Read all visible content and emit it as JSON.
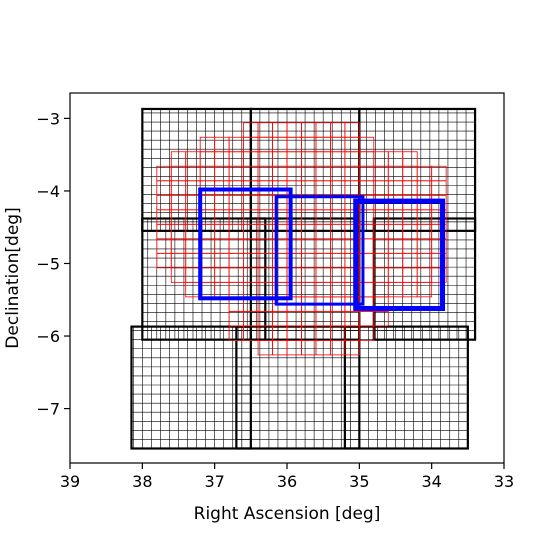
{
  "chart_data": {
    "type": "scatter",
    "title": "",
    "xlabel": "Right Ascension [deg]",
    "ylabel": "Declination[deg]",
    "xlim": [
      39,
      33
    ],
    "ylim": [
      -7.75,
      -2.65
    ],
    "x_inverted": true,
    "xticks": [
      39,
      38,
      37,
      36,
      35,
      34,
      33
    ],
    "yticks": [
      -3,
      -4,
      -5,
      -6,
      -7
    ],
    "xtick_labels": [
      "39",
      "38",
      "37",
      "36",
      "35",
      "34",
      "33"
    ],
    "ytick_labels": [
      "−3",
      "−4",
      "−5",
      "−6",
      "−7"
    ],
    "grid": false,
    "colors": {
      "black_grid": "#000000",
      "red_grid": "#ff0000",
      "blue_footprint": "#0000ff"
    },
    "series": [
      {
        "kind": "black_grid",
        "rects": [
          {
            "ra_min": 36.5,
            "ra_max": 38.0,
            "dec_min": -4.55,
            "dec_max": -2.87,
            "step": 0.125
          },
          {
            "ra_min": 35.0,
            "ra_max": 36.5,
            "dec_min": -4.55,
            "dec_max": -2.87,
            "step": 0.125
          },
          {
            "ra_min": 33.4,
            "ra_max": 35.0,
            "dec_min": -4.55,
            "dec_max": -2.87,
            "step": 0.125
          },
          {
            "ra_min": 36.3,
            "ra_max": 38.0,
            "dec_min": -6.05,
            "dec_max": -4.38,
            "step": 0.125
          },
          {
            "ra_min": 35.0,
            "ra_max": 36.5,
            "dec_min": -6.05,
            "dec_max": -4.38,
            "step": 0.125
          },
          {
            "ra_min": 33.4,
            "ra_max": 34.8,
            "dec_min": -6.05,
            "dec_max": -4.38,
            "step": 0.125
          },
          {
            "ra_min": 36.5,
            "ra_max": 38.15,
            "dec_min": -7.55,
            "dec_max": -5.87,
            "step": 0.125
          },
          {
            "ra_min": 35.0,
            "ra_max": 36.7,
            "dec_min": -7.55,
            "dec_max": -5.87,
            "step": 0.125
          },
          {
            "ra_min": 33.5,
            "ra_max": 35.2,
            "dec_min": -7.55,
            "dec_max": -5.87,
            "step": 0.125
          }
        ]
      },
      {
        "kind": "red_grid",
        "center_ra": 35.9,
        "center_dec": -4.6,
        "cell": 0.2,
        "rows": [
          {
            "dec_top": -3.06,
            "ra_left": 36.6,
            "ra_right": 35.0
          },
          {
            "dec_top": -3.26,
            "ra_left": 37.2,
            "ra_right": 34.8
          },
          {
            "dec_top": -3.46,
            "ra_left": 37.6,
            "ra_right": 34.2
          },
          {
            "dec_top": -3.66,
            "ra_left": 37.8,
            "ra_right": 33.8
          },
          {
            "dec_top": -3.86,
            "ra_left": 37.8,
            "ra_right": 33.8
          },
          {
            "dec_top": -4.06,
            "ra_left": 37.8,
            "ra_right": 33.8
          },
          {
            "dec_top": -4.26,
            "ra_left": 37.8,
            "ra_right": 33.8
          },
          {
            "dec_top": -4.46,
            "ra_left": 37.8,
            "ra_right": 33.8
          },
          {
            "dec_top": -4.66,
            "ra_left": 37.8,
            "ra_right": 33.8
          },
          {
            "dec_top": -4.86,
            "ra_left": 37.8,
            "ra_right": 33.8
          },
          {
            "dec_top": -5.06,
            "ra_left": 37.6,
            "ra_right": 33.8
          },
          {
            "dec_top": -5.26,
            "ra_left": 37.4,
            "ra_right": 34.0
          },
          {
            "dec_top": -5.46,
            "ra_left": 36.8,
            "ra_right": 34.6
          },
          {
            "dec_top": -5.66,
            "ra_left": 36.8,
            "ra_right": 34.6
          },
          {
            "dec_top": -5.86,
            "ra_left": 36.8,
            "ra_right": 34.8
          },
          {
            "dec_top": -6.06,
            "ra_left": 36.4,
            "ra_right": 35.0
          }
        ]
      },
      {
        "kind": "blue_footprint",
        "rects": [
          {
            "ra_min": 35.95,
            "ra_max": 37.2,
            "dec_min": -5.48,
            "dec_max": -3.98,
            "width": 4
          },
          {
            "ra_min": 34.95,
            "ra_max": 36.15,
            "dec_min": -5.56,
            "dec_max": -4.08,
            "width": 3
          },
          {
            "ra_min": 33.85,
            "ra_max": 35.05,
            "dec_min": -5.62,
            "dec_max": -4.14,
            "width": 5
          }
        ]
      }
    ]
  }
}
